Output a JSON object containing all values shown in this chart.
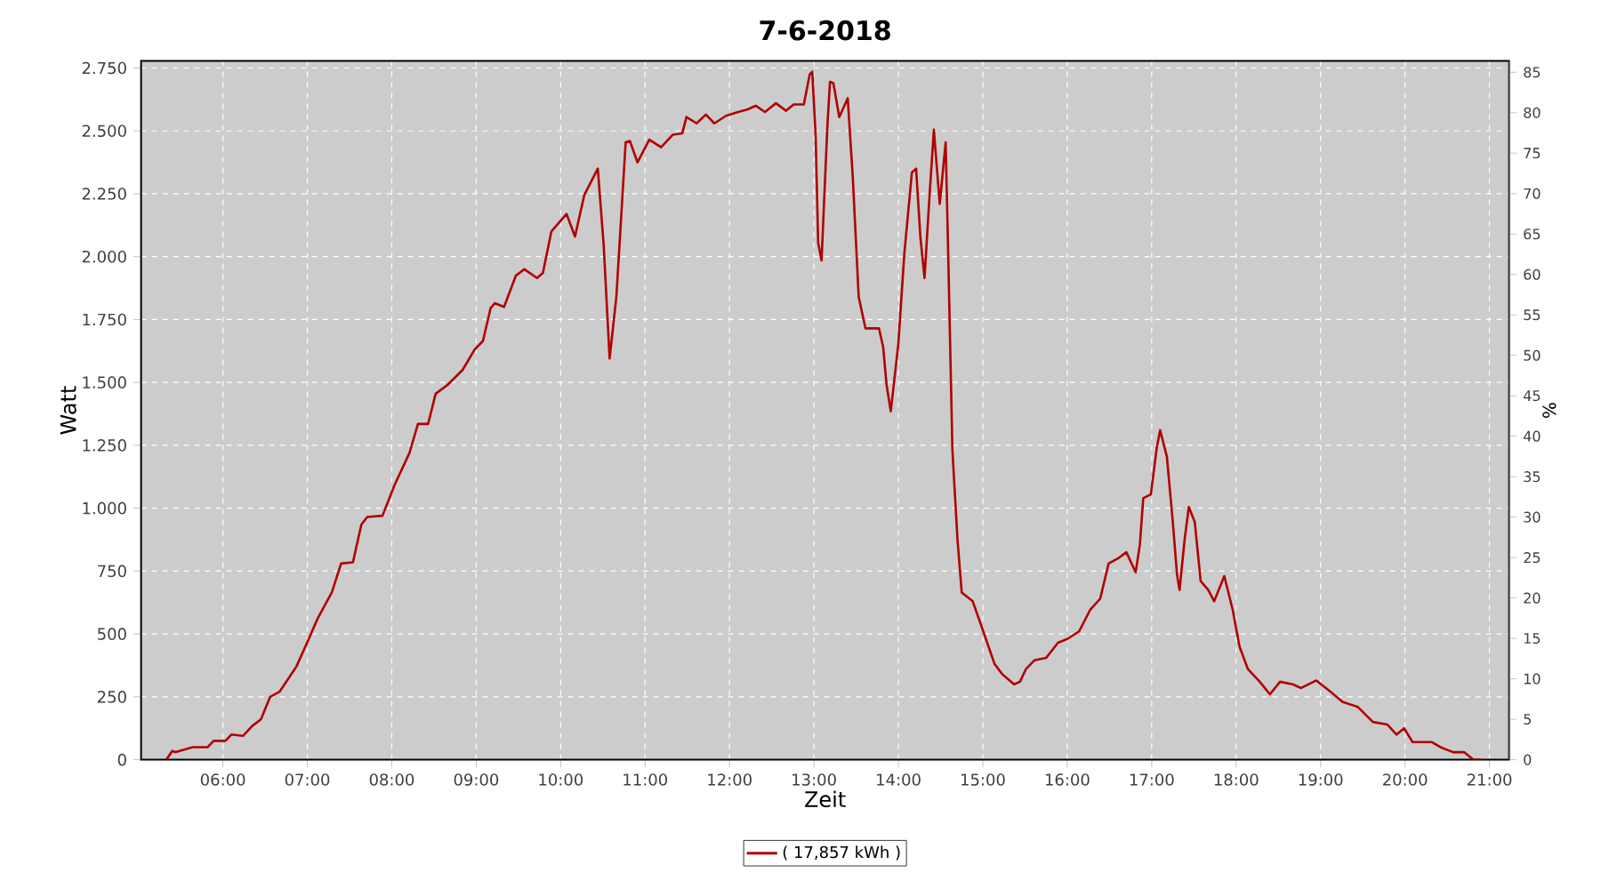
{
  "chart_data": {
    "type": "line",
    "title": "7-6-2018",
    "xlabel": "Zeit",
    "ylabel": "Watt",
    "y2label": "%",
    "xlim": [
      5.031,
      21.232
    ],
    "xticks": [
      {
        "value": 6,
        "label": "06:00"
      },
      {
        "value": 7,
        "label": "07:00"
      },
      {
        "value": 8,
        "label": "08:00"
      },
      {
        "value": 9,
        "label": "09:00"
      },
      {
        "value": 10,
        "label": "10:00"
      },
      {
        "value": 11,
        "label": "11:00"
      },
      {
        "value": 12,
        "label": "12:00"
      },
      {
        "value": 13,
        "label": "13:00"
      },
      {
        "value": 14,
        "label": "14:00"
      },
      {
        "value": 15,
        "label": "15:00"
      },
      {
        "value": 16,
        "label": "16:00"
      },
      {
        "value": 17,
        "label": "17:00"
      },
      {
        "value": 18,
        "label": "18:00"
      },
      {
        "value": 19,
        "label": "19:00"
      },
      {
        "value": 20,
        "label": "20:00"
      },
      {
        "value": 21,
        "label": "21:00"
      }
    ],
    "ylim": [
      0,
      2778
    ],
    "yticks": [
      0,
      250,
      500,
      750,
      {
        "value": 1000,
        "label": "1.000"
      },
      {
        "value": 1250,
        "label": "1.250"
      },
      {
        "value": 1500,
        "label": "1.500"
      },
      {
        "value": 1750,
        "label": "1.750"
      },
      {
        "value": 2000,
        "label": "2.000"
      },
      {
        "value": 2250,
        "label": "2.250"
      },
      {
        "value": 2500,
        "label": "2.500"
      },
      {
        "value": 2750,
        "label": "2.750"
      }
    ],
    "y2lim": [
      0,
      86.4
    ],
    "y2ticks": [
      0,
      5,
      10,
      15,
      20,
      25,
      30,
      35,
      40,
      45,
      50,
      55,
      60,
      65,
      70,
      75,
      80,
      85
    ],
    "grid": true,
    "legend": "bottom",
    "series": [
      {
        "name": "( 17,857 kWh )",
        "color": "#b00000",
        "x": [
          5.33,
          5.4,
          5.44,
          5.64,
          5.82,
          5.89,
          6.03,
          6.1,
          6.24,
          6.35,
          6.45,
          6.56,
          6.67,
          6.87,
          7.01,
          7.12,
          7.29,
          7.4,
          7.54,
          7.64,
          7.71,
          7.89,
          8.03,
          8.21,
          8.31,
          8.43,
          8.52,
          8.66,
          8.84,
          8.98,
          9.08,
          9.17,
          9.22,
          9.33,
          9.47,
          9.57,
          9.72,
          9.79,
          9.89,
          10.07,
          10.17,
          10.28,
          10.44,
          10.51,
          10.58,
          10.66,
          10.77,
          10.82,
          10.91,
          11.05,
          11.19,
          11.33,
          11.44,
          11.49,
          11.61,
          11.72,
          11.82,
          11.96,
          12.1,
          12.21,
          12.31,
          12.42,
          12.55,
          12.67,
          12.76,
          12.88,
          12.95,
          12.98,
          13.02,
          13.05,
          13.09,
          13.16,
          13.19,
          13.23,
          13.3,
          13.4,
          13.46,
          13.53,
          13.61,
          13.77,
          13.82,
          13.86,
          13.91,
          14.0,
          14.07,
          14.16,
          14.21,
          14.26,
          14.31,
          14.36,
          14.42,
          14.49,
          14.56,
          14.59,
          14.64,
          14.7,
          14.75,
          14.88,
          14.98,
          15.14,
          15.23,
          15.37,
          15.44,
          15.51,
          15.61,
          15.75,
          15.89,
          16.0,
          16.14,
          16.27,
          16.39,
          16.49,
          16.6,
          16.7,
          16.81,
          16.86,
          16.9,
          16.99,
          17.06,
          17.1,
          17.18,
          17.25,
          17.3,
          17.33,
          17.39,
          17.44,
          17.51,
          17.58,
          17.67,
          17.74,
          17.86,
          17.96,
          18.04,
          18.14,
          18.28,
          18.4,
          18.52,
          18.67,
          18.77,
          18.95,
          19.12,
          19.26,
          19.44,
          19.62,
          19.79,
          19.9,
          19.99,
          20.09,
          20.32,
          20.42,
          20.57,
          20.7,
          20.81,
          20.91
        ],
        "values": [
          0,
          35,
          30,
          50,
          50,
          75,
          75,
          100,
          95,
          135,
          160,
          250,
          270,
          370,
          475,
          560,
          665,
          780,
          785,
          935,
          965,
          970,
          1090,
          1220,
          1335,
          1335,
          1455,
          1490,
          1550,
          1630,
          1665,
          1795,
          1815,
          1800,
          1925,
          1950,
          1915,
          1935,
          2100,
          2170,
          2080,
          2245,
          2350,
          2045,
          1595,
          1840,
          2455,
          2460,
          2375,
          2465,
          2435,
          2485,
          2490,
          2555,
          2530,
          2565,
          2530,
          2560,
          2575,
          2585,
          2600,
          2575,
          2610,
          2580,
          2605,
          2605,
          2725,
          2735,
          2480,
          2055,
          1985,
          2525,
          2695,
          2690,
          2555,
          2630,
          2315,
          1840,
          1715,
          1715,
          1640,
          1490,
          1385,
          1655,
          2010,
          2335,
          2350,
          2080,
          1915,
          2195,
          2505,
          2210,
          2455,
          2010,
          1230,
          875,
          665,
          630,
          535,
          380,
          340,
          300,
          310,
          360,
          395,
          405,
          465,
          480,
          510,
          595,
          640,
          780,
          800,
          825,
          745,
          855,
          1040,
          1055,
          1240,
          1310,
          1205,
          945,
          735,
          675,
          875,
          1005,
          945,
          710,
          675,
          630,
          730,
          595,
          450,
          360,
          310,
          260,
          310,
          300,
          285,
          315,
          270,
          230,
          210,
          150,
          140,
          100,
          125,
          70,
          70,
          50,
          30,
          30,
          0,
          0
        ]
      }
    ]
  }
}
